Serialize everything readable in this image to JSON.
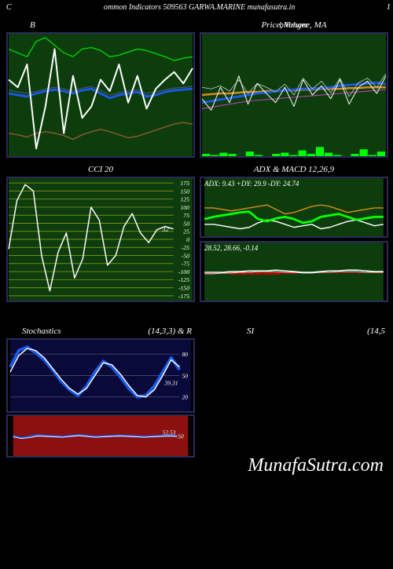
{
  "header": "ommon  Indicators 509563 GARWA.MARINE munafasutra.in",
  "header_prefix": "C",
  "watermark": "MunafaSutra.com",
  "colors": {
    "bg": "#000000",
    "panel_border": "#2a2a5a",
    "chart_bg_green": "#0d3d0d",
    "chart_bg_navy": "#0a0a3a",
    "chart_bg_red": "#8c1010",
    "white": "#ffffff",
    "blue_bold": "#1a5ae6",
    "green_line": "#00cc00",
    "brown_line": "#8b5a2b",
    "orange_line": "#d98c1a",
    "magenta_line": "#cc44cc",
    "olive_grid": "#7a8a1f",
    "bright_green": "#00ff00",
    "red_bar": "#cc0000"
  },
  "panels": {
    "p1": {
      "title_left": "B",
      "title_right": "",
      "bg": "#0d3d0d",
      "series": {
        "white": {
          "color": "#ffffff",
          "width": 2,
          "y": [
            60,
            70,
            40,
            150,
            95,
            20,
            130,
            55,
            110,
            95,
            60,
            75,
            40,
            90,
            55,
            98,
            72,
            60,
            50,
            65,
            45
          ]
        },
        "blue": {
          "color": "#1a5ae6",
          "width": 3,
          "y": [
            78,
            80,
            82,
            78,
            75,
            73,
            75,
            78,
            74,
            72,
            78,
            84,
            80,
            78,
            76,
            82,
            80,
            76,
            74,
            73,
            72
          ]
        },
        "blueL": {
          "color": "#555588",
          "width": 1,
          "y": [
            74,
            76,
            78,
            75,
            72,
            70,
            72,
            75,
            71,
            69,
            74,
            80,
            77,
            75,
            73,
            78,
            76,
            73,
            71,
            70,
            69
          ]
        },
        "green": {
          "color": "#00cc00",
          "width": 1.5,
          "y": [
            20,
            25,
            30,
            10,
            5,
            15,
            25,
            30,
            20,
            18,
            22,
            30,
            28,
            24,
            20,
            22,
            26,
            30,
            35,
            32,
            30
          ]
        },
        "brown": {
          "color": "#8b5a2b",
          "width": 1.5,
          "y": [
            130,
            132,
            135,
            130,
            128,
            130,
            133,
            138,
            132,
            128,
            125,
            128,
            132,
            136,
            134,
            130,
            126,
            122,
            118,
            116,
            118
          ]
        }
      }
    },
    "p2": {
      "title": "Price,  Volume,  MA",
      "title_overlay": "bllimger",
      "bg": "#0d3d0d",
      "series": {
        "blue": {
          "color": "#1a5ae6",
          "width": 3,
          "y": [
            90,
            88,
            86,
            84,
            82,
            80,
            78,
            77,
            75,
            74,
            73,
            72,
            72,
            71,
            70,
            68,
            67,
            66,
            65,
            64,
            66
          ]
        },
        "orange": {
          "color": "#d98c1a",
          "width": 2.5,
          "y": [
            80,
            79,
            78,
            78,
            77,
            76,
            76,
            75,
            75,
            74,
            74,
            73,
            73,
            72,
            72,
            72,
            71,
            71,
            70,
            70,
            70
          ]
        },
        "white": {
          "color": "#ffffff",
          "width": 1,
          "y": [
            85,
            100,
            70,
            90,
            55,
            92,
            65,
            78,
            90,
            70,
            95,
            60,
            80,
            68,
            85,
            60,
            92,
            70,
            62,
            78,
            55
          ]
        },
        "whiteT": {
          "color": "#cccccc",
          "width": 0.8,
          "y": [
            70,
            72,
            68,
            75,
            60,
            78,
            65,
            70,
            76,
            66,
            80,
            58,
            72,
            62,
            77,
            58,
            82,
            64,
            58,
            70,
            52
          ]
        },
        "magenta": {
          "color": "#cc44cc",
          "width": 1,
          "y": [
            98,
            96,
            94,
            92,
            90,
            88,
            87,
            86,
            85,
            84,
            83,
            82,
            81,
            80,
            79,
            78,
            77,
            76,
            75,
            74,
            73
          ]
        },
        "greenbar": {
          "color": "#00ff00",
          "type": "bar",
          "y": [
            2,
            1,
            3,
            2,
            0,
            4,
            1,
            0,
            2,
            3,
            1,
            5,
            2,
            8,
            3,
            1,
            0,
            2,
            6,
            1,
            4
          ]
        }
      }
    },
    "p3": {
      "title": "CCI 20",
      "bg": "#0d3d0d",
      "grid_color": "#7a8a1f",
      "ticks": [
        175,
        150,
        125,
        100,
        75,
        50,
        25,
        0,
        -25,
        -50,
        -75,
        -100,
        -125,
        -150,
        -175
      ],
      "current_label": "32",
      "white": {
        "color": "#ffffff",
        "width": 1.5,
        "y": [
          -30,
          120,
          170,
          150,
          -50,
          -160,
          -40,
          20,
          -120,
          -60,
          100,
          60,
          -80,
          -50,
          40,
          80,
          20,
          -10,
          30,
          40,
          32
        ]
      }
    },
    "p4": {
      "title": "ADX   & MACD 12,26,9",
      "adx": {
        "label": "ADX: 9.43 +DY: 29.9 -DY: 24.74",
        "bg": "#0d3d0d",
        "series": {
          "green": {
            "color": "#00ff00",
            "width": 3,
            "y": [
              55,
              52,
              50,
              48,
              46,
              45,
              55,
              58,
              54,
              52,
              55,
              60,
              58,
              52,
              50,
              48,
              52,
              56,
              54,
              52,
              52
            ]
          },
          "orange": {
            "color": "#d98c1a",
            "width": 1.5,
            "y": [
              40,
              40,
              42,
              44,
              42,
              40,
              38,
              36,
              42,
              48,
              46,
              42,
              38,
              36,
              38,
              42,
              46,
              44,
              42,
              40,
              40
            ]
          },
          "white": {
            "color": "#ffffff",
            "width": 1.5,
            "y": [
              62,
              62,
              64,
              66,
              68,
              66,
              60,
              56,
              58,
              62,
              66,
              64,
              62,
              68,
              66,
              62,
              58,
              56,
              60,
              64,
              62
            ]
          }
        }
      },
      "macd": {
        "label": "28.52,  28.66,  -0.14",
        "bg": "#0d3d0d",
        "series": {
          "whiteA": {
            "color": "#ffffff",
            "width": 1.5,
            "y": [
              40,
              40,
              40,
              39,
              39,
              38,
              38,
              38,
              37,
              38,
              39,
              40,
              40,
              39,
              38,
              38,
              37,
              37,
              38,
              39,
              39
            ]
          },
          "whiteB": {
            "color": "#dddddd",
            "width": 1,
            "y": [
              42,
              42,
              41,
              41,
              40,
              40,
              39,
              39,
              39,
              40,
              40,
              41,
              41,
              40,
              40,
              39,
              39,
              39,
              40,
              40,
              40
            ]
          },
          "redbar": {
            "color": "#cc0000",
            "type": "bar",
            "zero": 40,
            "y": [
              42,
              42,
              42,
              43,
              43,
              43,
              43,
              43,
              43,
              42,
              42,
              41,
              41,
              41,
              41,
              41,
              41,
              41,
              41,
              41,
              41
            ]
          },
          "grnbar": {
            "color": "#00cc00",
            "type": "bar",
            "zero": 40,
            "y": [
              40,
              40,
              40,
              40,
              40,
              40,
              40,
              40,
              40,
              40,
              40,
              40,
              40,
              40,
              40,
              40,
              40,
              40,
              40,
              39,
              39
            ]
          }
        }
      }
    },
    "p5": {
      "title_left": "Stochastics",
      "title_right": "(14,3,3) & R",
      "title2_left": "SI",
      "title2_right": "(14,5",
      "top": {
        "bg": "#0a0a3a",
        "ticks": [
          80,
          50,
          20
        ],
        "cur": "39.31",
        "series": {
          "blue": {
            "color": "#1a5ae6",
            "width": 4,
            "y": [
              62,
              85,
              90,
              82,
              72,
              58,
              42,
              30,
              22,
              35,
              55,
              70,
              62,
              48,
              32,
              20,
              22,
              35,
              55,
              75,
              58
            ]
          },
          "white": {
            "color": "#ffffff",
            "width": 1.5,
            "y": [
              55,
              78,
              88,
              85,
              75,
              60,
              45,
              32,
              24,
              32,
              50,
              68,
              65,
              52,
              36,
              22,
              20,
              30,
              50,
              72,
              62
            ]
          }
        }
      },
      "bottom": {
        "bg": "#8c1010",
        "cur": "52.53",
        "tick": "50",
        "series": {
          "blue": {
            "color": "#1a5ae6",
            "width": 3,
            "y": [
              50,
              45,
              48,
              52,
              50,
              49,
              48,
              50,
              52,
              50,
              48,
              49,
              50,
              51,
              50,
              49,
              48,
              49,
              50,
              51,
              50
            ]
          },
          "white": {
            "color": "#ffffff",
            "width": 1,
            "y": [
              48,
              44,
              46,
              50,
              49,
              48,
              47,
              49,
              51,
              49,
              47,
              48,
              49,
              50,
              49,
              48,
              47,
              48,
              49,
              50,
              49
            ]
          }
        }
      }
    }
  }
}
